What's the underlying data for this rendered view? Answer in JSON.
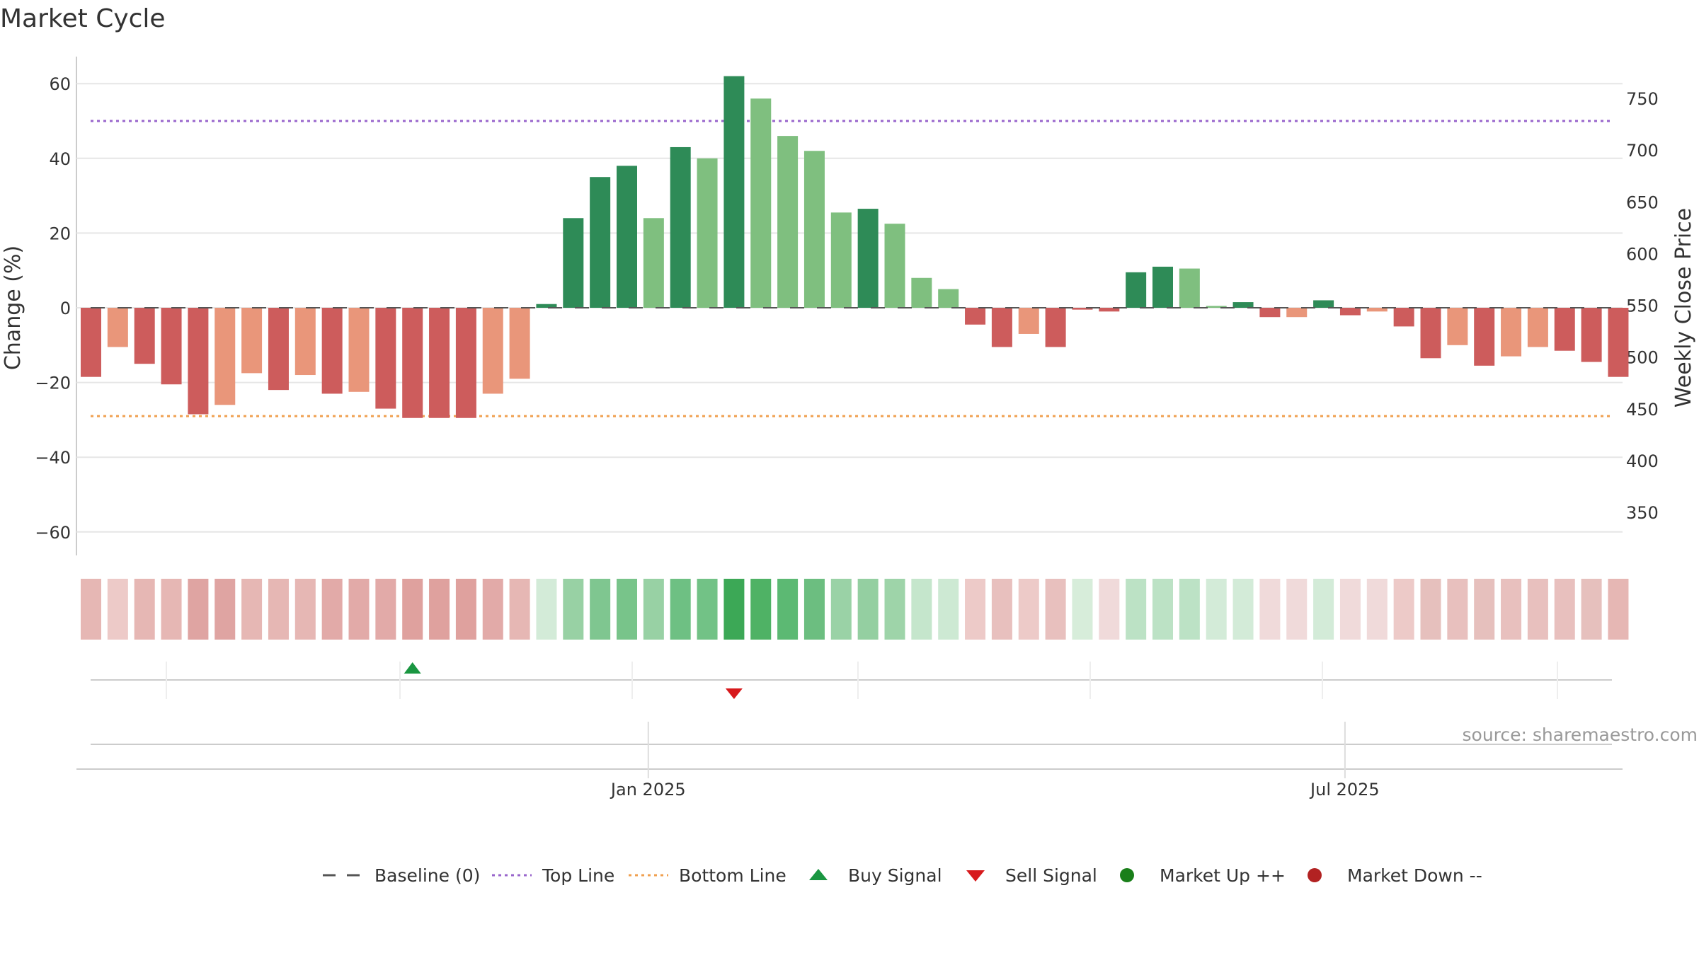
{
  "chart_data": {
    "type": "bar",
    "title": "Market Cycle",
    "ylabel": "Change (%)",
    "y2label": "Weekly Close Price",
    "ylim": [
      -67,
      67
    ],
    "y2lim": [
      320,
      770
    ],
    "yticks": [
      "60",
      "40",
      "20",
      "0",
      "−20",
      "−40",
      "−60"
    ],
    "yticks_values": [
      60,
      40,
      20,
      0,
      -20,
      -40,
      -60
    ],
    "y2ticks": [
      "750",
      "700",
      "650",
      "600",
      "550",
      "500",
      "450",
      "400",
      "350"
    ],
    "y2ticks_values": [
      750,
      700,
      650,
      600,
      550,
      500,
      450,
      400,
      350
    ],
    "xticks": [
      "Jan 2025",
      "Jul 2025"
    ],
    "xtick_weeks": [
      20.8,
      46.8
    ],
    "top_line": 50,
    "bottom_line": -29,
    "grid": true,
    "legend_position": "bottom",
    "series": [
      {
        "values": [
          -18.5,
          -10.5,
          -15,
          -20.5,
          -28.5,
          -26,
          -17.5,
          -22,
          -18,
          -23,
          -22.5,
          -27,
          -29.5,
          -29.5,
          -29.5,
          -23,
          -19,
          1,
          24,
          35,
          38,
          24,
          43,
          40,
          62,
          56,
          46,
          42,
          25.5,
          26.5,
          22.5,
          8,
          5,
          -4.5,
          -10.5,
          -7,
          -10.5,
          -0.5,
          -1,
          9.5,
          11,
          10.5,
          0.5,
          1.5,
          -2.5,
          -2.5,
          2,
          -2,
          -1,
          -5,
          -13.5,
          -10,
          -15.5,
          -13,
          -10.5,
          -11.5,
          -14.5,
          -18.5
        ]
      }
    ],
    "bar_colors": [
      "#cd5c5c",
      "#e9967a",
      "#cd5c5c",
      "#cd5c5c",
      "#cd5c5c",
      "#e9967a",
      "#e9967a",
      "#cd5c5c",
      "#e9967a",
      "#cd5c5c",
      "#e9967a",
      "#cd5c5c",
      "#cd5c5c",
      "#cd5c5c",
      "#cd5c5c",
      "#e9967a",
      "#e9967a",
      "#2e8b57",
      "#2e8b57",
      "#2e8b57",
      "#2e8b57",
      "#7fbf7f",
      "#2e8b57",
      "#7fbf7f",
      "#2e8b57",
      "#7fbf7f",
      "#7fbf7f",
      "#7fbf7f",
      "#7fbf7f",
      "#2e8b57",
      "#7fbf7f",
      "#7fbf7f",
      "#7fbf7f",
      "#cd5c5c",
      "#cd5c5c",
      "#e9967a",
      "#cd5c5c",
      "#cd5c5c",
      "#cd5c5c",
      "#2e8b57",
      "#2e8b57",
      "#7fbf7f",
      "#7fbf7f",
      "#2e8b57",
      "#cd5c5c",
      "#e9967a",
      "#2e8b57",
      "#cd5c5c",
      "#e9967a",
      "#cd5c5c",
      "#cd5c5c",
      "#e9967a",
      "#cd5c5c",
      "#e9967a",
      "#e9967a",
      "#cd5c5c",
      "#cd5c5c",
      "#cd5c5c"
    ],
    "heat_strip_colors": [
      "#e6b7b4",
      "#edcac8",
      "#e6b7b4",
      "#e6b7b4",
      "#dfa4a2",
      "#dfa4a2",
      "#e6b7b4",
      "#e6b7b4",
      "#e6b7b4",
      "#e2aaa8",
      "#e2aaa8",
      "#e2aaa8",
      "#dfa19e",
      "#dfa19e",
      "#dfa19e",
      "#e2aaa8",
      "#e6b7b4",
      "#d3ebd8",
      "#98d1a4",
      "#7fc690",
      "#78c48a",
      "#98d1a4",
      "#6ec083",
      "#72c286",
      "#3ca856",
      "#4fb265",
      "#5cb973",
      "#6cbe80",
      "#9ad2a6",
      "#94cfa1",
      "#9ed4a9",
      "#c5e6cc",
      "#cde9d3",
      "#edcac8",
      "#e8c0be",
      "#edcac8",
      "#e8c0be",
      "#d7edda",
      "#f0dada",
      "#bce2c5",
      "#bce2c5",
      "#bce2c5",
      "#d3ebd8",
      "#d3ebd8",
      "#f0dada",
      "#f0dada",
      "#d3ebd8",
      "#f0dada",
      "#f0dada",
      "#edcac8",
      "#e6c0bd",
      "#e8c0be",
      "#e6c0bd",
      "#e8c0be",
      "#e8c0be",
      "#e8c0be",
      "#e6c0bd",
      "#e6b7b4"
    ],
    "buy_signals": [
      12
    ],
    "sell_signals": [
      24
    ],
    "colors": {
      "baseline": "#555555",
      "top_line": "#9966cc",
      "bottom_line": "#f0a050",
      "buy": "#1a9641",
      "sell": "#d7191c",
      "market_up": "#1a7f1a",
      "market_down": "#b22222",
      "grid": "#e6e6e6",
      "axis": "#cccccc"
    },
    "legend": [
      {
        "label": "Baseline (0)",
        "symbol": "dash"
      },
      {
        "label": "Top Line",
        "symbol": "dot-purple"
      },
      {
        "label": "Bottom Line",
        "symbol": "dot-orange"
      },
      {
        "label": "Buy Signal",
        "symbol": "triangle-up"
      },
      {
        "label": "Sell Signal",
        "symbol": "triangle-down"
      },
      {
        "label": "Market Up ++",
        "symbol": "circle-green"
      },
      {
        "label": "Market Down --",
        "symbol": "circle-red"
      }
    ],
    "annotations": [
      "source: sharemaestro.com"
    ]
  }
}
